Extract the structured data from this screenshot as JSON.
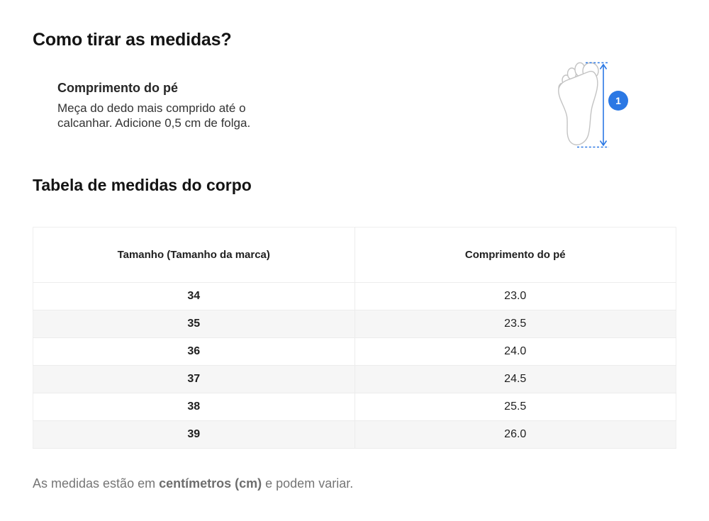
{
  "page": {
    "title": "Como tirar as medidas?",
    "section_title": "Tabela de medidas do corpo"
  },
  "steps": [
    {
      "number": "1",
      "label": "Comprimento do pé",
      "description": "Meça do dedo mais comprido até o calcanhar. Adicione 0,5 cm de folga."
    }
  ],
  "diagram": {
    "badge_number": "1",
    "icon": "foot-outline-with-measure-arrow"
  },
  "table": {
    "headers": [
      "Tamanho (Tamanho da marca)",
      "Comprimento do pé"
    ],
    "rows": [
      [
        "34",
        "23.0"
      ],
      [
        "35",
        "23.5"
      ],
      [
        "36",
        "24.0"
      ],
      [
        "37",
        "24.5"
      ],
      [
        "38",
        "25.5"
      ],
      [
        "39",
        "26.0"
      ]
    ]
  },
  "footnote": {
    "prefix": "As medidas estão em ",
    "bold": "centímetros (cm)",
    "suffix": " e podem variar."
  },
  "colors": {
    "accent_blue": "#2b78e4",
    "table_header_bg": "#f6f6f6",
    "row_alt_bg": "#f6f6f6",
    "border": "#ececec",
    "text_primary": "#1a1a1a",
    "text_secondary": "#757575",
    "foot_outline": "#c3c3c3"
  }
}
